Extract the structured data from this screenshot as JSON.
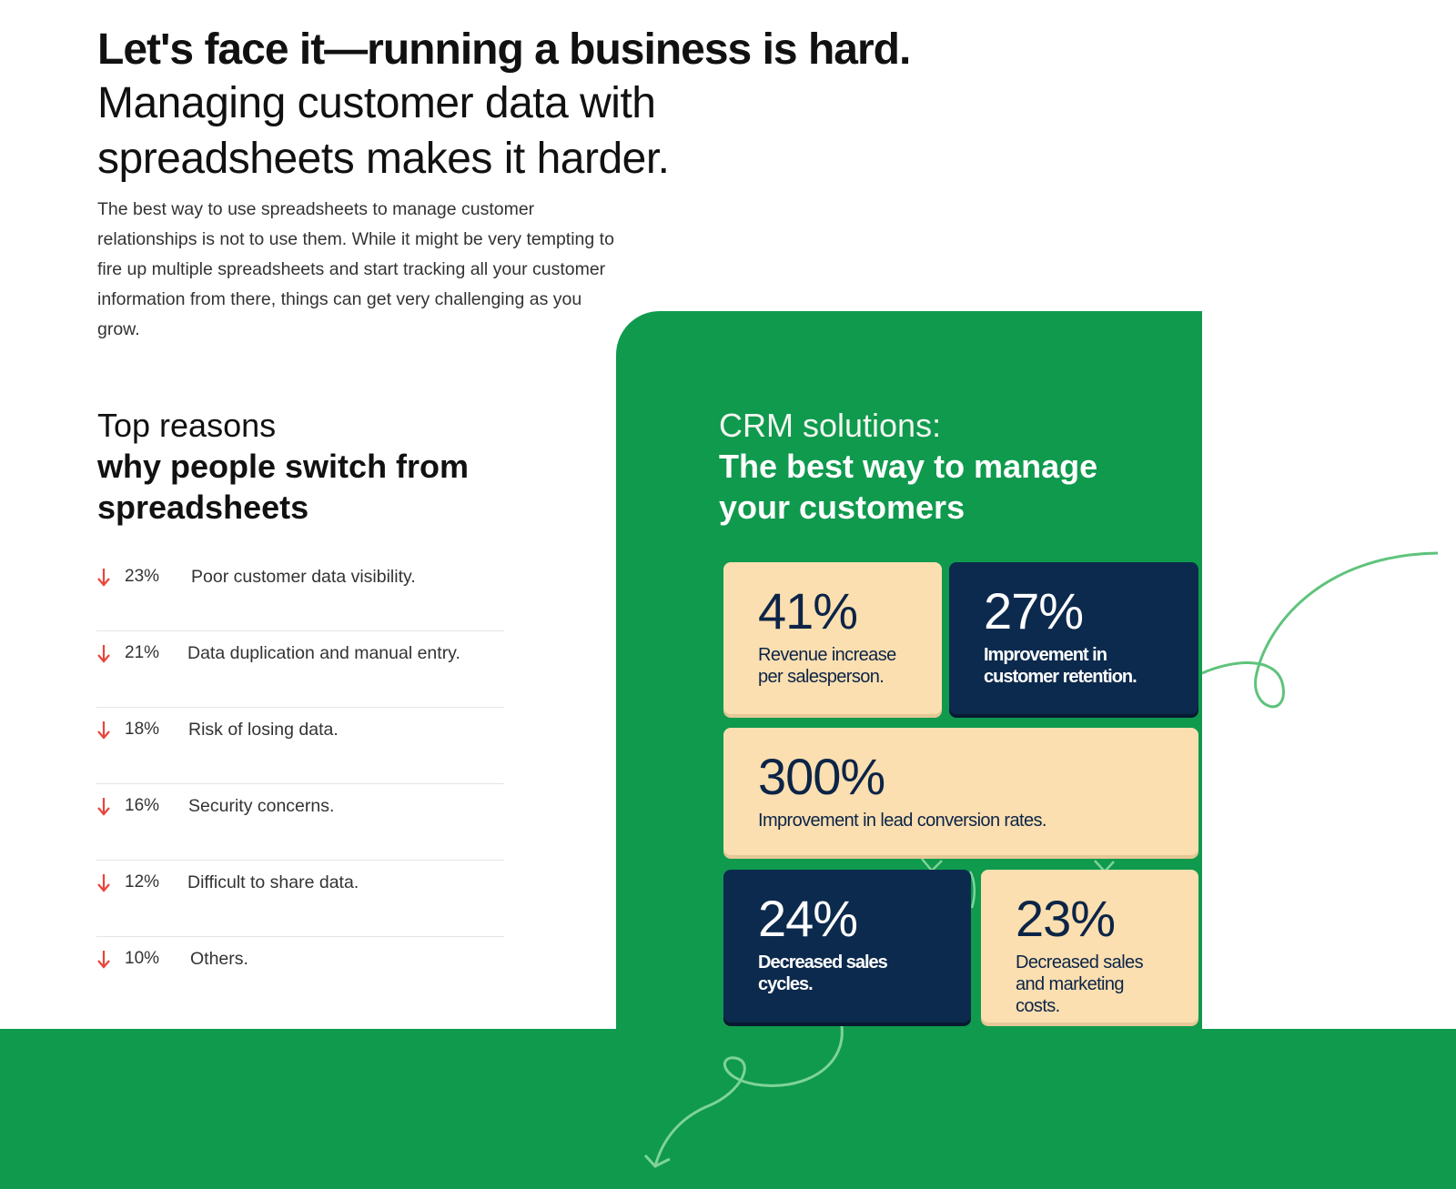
{
  "headline": {
    "bold": "Let's face it—running a business is hard.",
    "light": "Managing customer data with spreadsheets makes it harder."
  },
  "intro": "The best way to use spreadsheets to manage customer relationships is not to use them. While it might be very tempting to fire up multiple spreadsheets and start tracking all your customer information from there, things can get very challenging as you grow.",
  "reasons": {
    "title_line1": "Top reasons",
    "title_line2": "why people switch from spreadsheets",
    "items": [
      {
        "percent": "23%",
        "label": "Poor customer data visibility."
      },
      {
        "percent": "21%",
        "label": "Data duplication and manual entry."
      },
      {
        "percent": "18%",
        "label": "Risk of losing data."
      },
      {
        "percent": "16%",
        "label": "Security concerns."
      },
      {
        "percent": "12%",
        "label": "Difficult to share data."
      },
      {
        "percent": "10%",
        "label": "Others."
      }
    ],
    "arrow_icon": "arrow-down-icon",
    "arrow_color": "#e8453c"
  },
  "crm": {
    "title_line1": "CRM solutions:",
    "title_line2": "The best way to manage your customers",
    "stats": [
      {
        "value": "41%",
        "label": "Revenue increase per salesperson."
      },
      {
        "value": "27%",
        "label": "Improvement in customer retention."
      },
      {
        "value": "300%",
        "label": "Improvement in lead conversion rates."
      },
      {
        "value": "24%",
        "label": "Decreased sales cycles."
      },
      {
        "value": "23%",
        "label": "Decreased sales and marketing costs."
      }
    ]
  },
  "colors": {
    "brand_green": "#0f9a4d",
    "card_light": "#fbdfb0",
    "card_dark": "#0c2a4d",
    "accent_red": "#e8453c"
  }
}
